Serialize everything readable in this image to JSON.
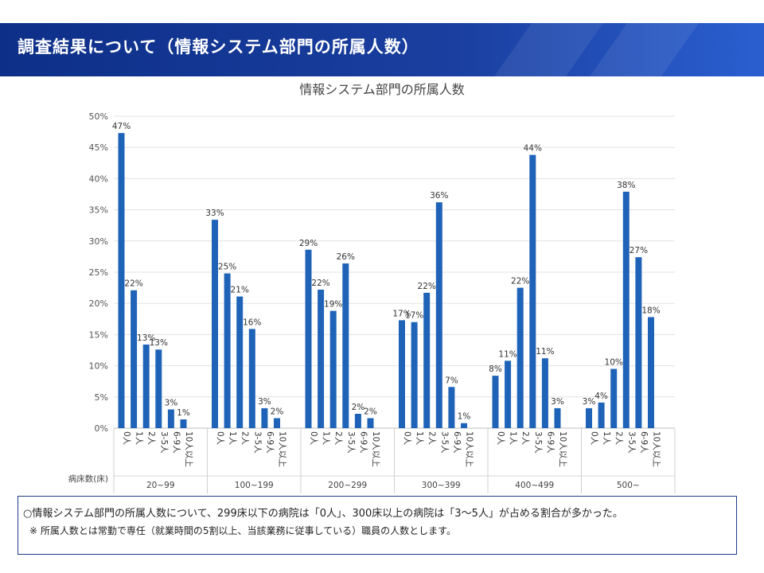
{
  "header": {
    "title": "調査結果について（情報システム部門の所属人数）"
  },
  "chart_data": {
    "type": "bar",
    "title": "情報システム部門の所属人数",
    "xlabel": "病床数(床)",
    "ylim": [
      0,
      50
    ],
    "yticks": [
      "0%",
      "5%",
      "10%",
      "15%",
      "20%",
      "25%",
      "30%",
      "35%",
      "40%",
      "45%",
      "50%"
    ],
    "grid": true,
    "categories": [
      "0人",
      "1人",
      "2人",
      "3-5人",
      "6-9人",
      "10人以上"
    ],
    "groups": [
      {
        "name": "20~99",
        "values": [
          47.3,
          22.1,
          13.4,
          12.6,
          3.0,
          1.4
        ],
        "labels": [
          "47%",
          "22%",
          "13%",
          "13%",
          "3%",
          "1%"
        ]
      },
      {
        "name": "100~199",
        "values": [
          33.4,
          24.8,
          21.1,
          15.9,
          3.2,
          1.6
        ],
        "labels": [
          "33%",
          "25%",
          "21%",
          "16%",
          "3%",
          "2%"
        ]
      },
      {
        "name": "200~299",
        "values": [
          28.6,
          22.2,
          18.8,
          26.4,
          2.3,
          1.6
        ],
        "labels": [
          "29%",
          "22%",
          "19%",
          "26%",
          "2%",
          "2%"
        ]
      },
      {
        "name": "300~399",
        "values": [
          17.3,
          17.0,
          21.7,
          36.2,
          6.6,
          0.8
        ],
        "labels": [
          "17%",
          "17%",
          "22%",
          "36%",
          "7%",
          "1%"
        ]
      },
      {
        "name": "400~499",
        "values": [
          8.4,
          10.8,
          22.5,
          43.8,
          11.2,
          3.2
        ],
        "labels": [
          "8%",
          "11%",
          "22%",
          "44%",
          "11%",
          "3%"
        ]
      },
      {
        "name": "500~",
        "values": [
          3.2,
          4.1,
          9.5,
          37.9,
          27.4,
          17.8
        ],
        "labels": [
          "3%",
          "4%",
          "10%",
          "38%",
          "27%",
          "18%"
        ]
      }
    ],
    "bar_color": "#1f63b8"
  },
  "note": {
    "line1": "○情報システム部門の所属人数について、299床以下の病院は「0人」、300床以上の病院は「3～5人」が占める割合が多かった。",
    "line2": "※ 所属人数とは常勤で専任（就業時間の5割以上、当該業務に従事している）職員の人数とします。"
  }
}
